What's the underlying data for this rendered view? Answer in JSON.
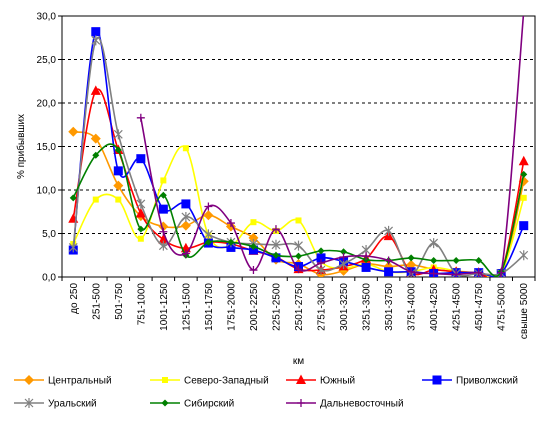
{
  "chart_data": {
    "type": "line",
    "xlabel": "км",
    "ylabel": "% прибывших",
    "ylim": [
      0,
      30
    ],
    "yticks": [
      "0,0",
      "5,0",
      "10,0",
      "15,0",
      "20,0",
      "25,0",
      "30,0"
    ],
    "grid": "horizontal dashed",
    "legend_position": "bottom",
    "categories": [
      "до 250",
      "251-500",
      "501-750",
      "751-1000",
      "1001-1250",
      "1251-1500",
      "1501-1750",
      "1751-2000",
      "2001-2250",
      "2251-2500",
      "2501-2750",
      "2751-3000",
      "3001-3250",
      "3251-3500",
      "3501-3750",
      "3751-4000",
      "4001-4250",
      "4251-4500",
      "4501-4750",
      "4751-5000",
      "свыше 5000"
    ],
    "series": [
      {
        "name": "Центральный",
        "color": "#FF9900",
        "marker": "diamond",
        "values": [
          16.7,
          15.9,
          10.5,
          7.0,
          5.8,
          5.9,
          7.1,
          5.8,
          4.5,
          2.0,
          1.5,
          0.3,
          0.7,
          1.5,
          1.2,
          1.4,
          0.9,
          0.6,
          0.5,
          0.2,
          11.0
        ]
      },
      {
        "name": "Северо-Западный",
        "color": "#FFFF00",
        "marker": "square",
        "values": [
          3.8,
          8.9,
          8.9,
          4.4,
          11.1,
          14.8,
          4.8,
          3.6,
          6.3,
          5.3,
          6.5,
          1.8,
          1.0,
          1.5,
          0.6,
          0.6,
          1.1,
          0.7,
          0.5,
          0.5,
          9.1
        ]
      },
      {
        "name": "Южный",
        "color": "#FF0000",
        "marker": "triangle",
        "values": [
          6.7,
          21.4,
          14.6,
          7.3,
          4.3,
          3.3,
          4.0,
          3.8,
          3.0,
          2.3,
          0.9,
          0.8,
          1.2,
          2.1,
          4.7,
          0.5,
          0.8,
          0.6,
          0.5,
          0.5,
          13.3
        ]
      },
      {
        "name": "Приволжский",
        "color": "#0000FF",
        "marker": "bigsquare",
        "values": [
          3.1,
          28.2,
          12.2,
          13.6,
          7.8,
          8.4,
          3.9,
          3.4,
          3.1,
          2.2,
          1.2,
          2.2,
          1.8,
          1.1,
          0.6,
          0.6,
          0.4,
          0.5,
          0.5,
          0.4,
          5.9
        ]
      },
      {
        "name": "Уральский",
        "color": "#808080",
        "marker": "star",
        "values": [
          3.4,
          27.2,
          16.4,
          8.4,
          3.6,
          6.9,
          4.9,
          4.0,
          3.8,
          3.7,
          3.6,
          0.8,
          1.5,
          3.1,
          5.3,
          0.4,
          3.9,
          0.4,
          0.4,
          0.4,
          2.5
        ]
      },
      {
        "name": "Сибирский",
        "color": "#008000",
        "marker": "smalldiamond",
        "values": [
          9.1,
          14.0,
          14.6,
          5.5,
          9.4,
          2.5,
          4.0,
          4.0,
          3.5,
          2.5,
          2.4,
          3.0,
          2.9,
          2.0,
          1.9,
          2.2,
          1.9,
          1.9,
          1.9,
          0.6,
          11.8
        ]
      },
      {
        "name": "Дальневосточный",
        "color": "#800080",
        "marker": "plus",
        "values": [
          null,
          null,
          null,
          18.3,
          5.2,
          2.7,
          8.1,
          6.2,
          0.8,
          5.5,
          0.9,
          1.6,
          2.3,
          2.4,
          1.9,
          0.6,
          0.4,
          0.3,
          0.5,
          0.5,
          30.5
        ]
      }
    ]
  }
}
